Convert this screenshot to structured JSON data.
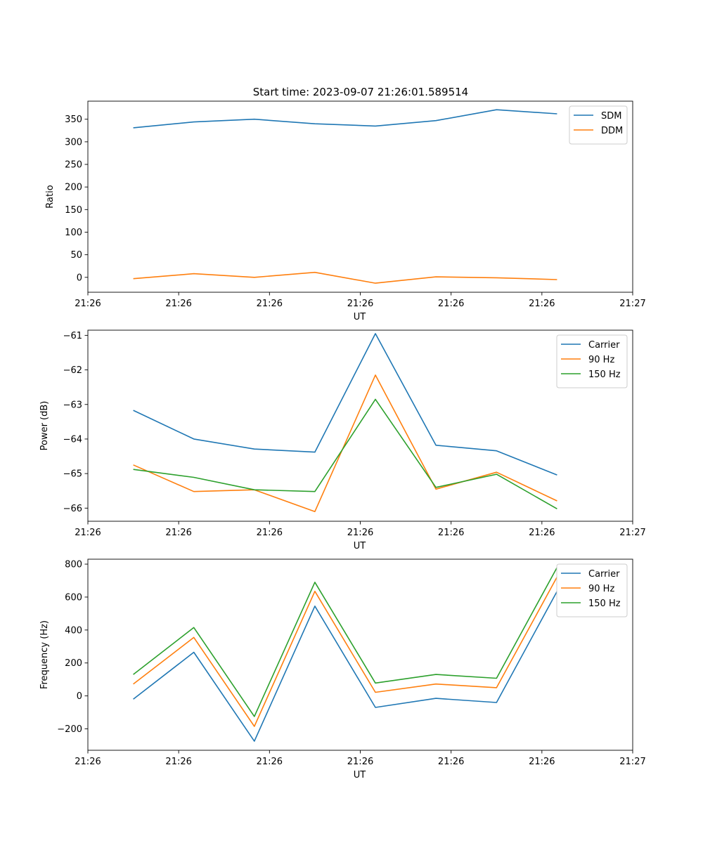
{
  "figure_title": "Start time: 2023-09-07 21:26:01.589514",
  "chart_data": [
    {
      "type": "line",
      "title": "Start time: 2023-09-07 21:26:01.589514",
      "xlabel": "UT",
      "ylabel": "Ratio",
      "x": [
        1,
        2,
        3,
        4,
        5,
        6,
        7,
        8
      ],
      "xlim": [
        0.25,
        9.25
      ],
      "x_ticks": [
        0.25,
        1.75,
        3.25,
        4.75,
        6.25,
        7.75,
        9.25
      ],
      "x_tick_labels": [
        "21:26",
        "21:26",
        "21:26",
        "21:26",
        "21:26",
        "21:26",
        "21:27"
      ],
      "ylim": [
        -33,
        390
      ],
      "y_ticks": [
        0,
        50,
        100,
        150,
        200,
        250,
        300,
        350
      ],
      "y_tick_labels": [
        "0",
        "50",
        "100",
        "150",
        "200",
        "250",
        "300",
        "350"
      ],
      "legend_position": "top-right",
      "series": [
        {
          "name": "SDM",
          "color": "#1f77b4",
          "values": [
            331,
            344,
            350,
            340,
            335,
            347,
            371,
            362
          ]
        },
        {
          "name": "DDM",
          "color": "#ff7f0e",
          "values": [
            -3,
            8,
            0,
            11,
            -13,
            1,
            -1,
            -5
          ]
        }
      ]
    },
    {
      "type": "line",
      "title": "",
      "xlabel": "UT",
      "ylabel": "Power (dB)",
      "x": [
        1,
        2,
        3,
        4,
        5,
        6,
        7,
        8
      ],
      "xlim": [
        0.25,
        9.25
      ],
      "x_ticks": [
        0.25,
        1.75,
        3.25,
        4.75,
        6.25,
        7.75,
        9.25
      ],
      "x_tick_labels": [
        "21:26",
        "21:26",
        "21:26",
        "21:26",
        "21:26",
        "21:26",
        "21:27"
      ],
      "ylim": [
        -66.38,
        -60.85
      ],
      "y_ticks": [
        -66,
        -65,
        -64,
        -63,
        -62,
        -61
      ],
      "y_tick_labels": [
        "−66",
        "−65",
        "−64",
        "−63",
        "−62",
        "−61"
      ],
      "legend_position": "top-right",
      "series": [
        {
          "name": "Carrier",
          "color": "#1f77b4",
          "values": [
            -63.17,
            -64.0,
            -64.29,
            -64.38,
            -60.95,
            -64.18,
            -64.34,
            -65.04
          ]
        },
        {
          "name": "90 Hz",
          "color": "#ff7f0e",
          "values": [
            -64.75,
            -65.52,
            -65.47,
            -66.1,
            -62.15,
            -65.45,
            -64.96,
            -65.79
          ]
        },
        {
          "name": "150 Hz",
          "color": "#2ca02c",
          "values": [
            -64.88,
            -65.11,
            -65.47,
            -65.52,
            -62.85,
            -65.4,
            -65.02,
            -66.02
          ]
        }
      ]
    },
    {
      "type": "line",
      "title": "",
      "xlabel": "UT",
      "ylabel": "Frequency (Hz)",
      "x": [
        1,
        2,
        3,
        4,
        5,
        6,
        7,
        8
      ],
      "xlim": [
        0.25,
        9.25
      ],
      "x_ticks": [
        0.25,
        1.75,
        3.25,
        4.75,
        6.25,
        7.75,
        9.25
      ],
      "x_tick_labels": [
        "21:26",
        "21:26",
        "21:26",
        "21:26",
        "21:26",
        "21:26",
        "21:27"
      ],
      "ylim": [
        -330,
        830
      ],
      "y_ticks": [
        -200,
        0,
        200,
        400,
        600,
        800
      ],
      "y_tick_labels": [
        "−200",
        "0",
        "200",
        "400",
        "600",
        "800"
      ],
      "legend_position": "top-right",
      "series": [
        {
          "name": "Carrier",
          "color": "#1f77b4",
          "values": [
            -20,
            265,
            -275,
            545,
            -70,
            -15,
            -40,
            635
          ]
        },
        {
          "name": "90 Hz",
          "color": "#ff7f0e",
          "values": [
            72,
            355,
            -185,
            635,
            22,
            72,
            50,
            722
          ]
        },
        {
          "name": "150 Hz",
          "color": "#2ca02c",
          "values": [
            130,
            415,
            -125,
            690,
            78,
            130,
            107,
            780
          ]
        }
      ]
    }
  ]
}
